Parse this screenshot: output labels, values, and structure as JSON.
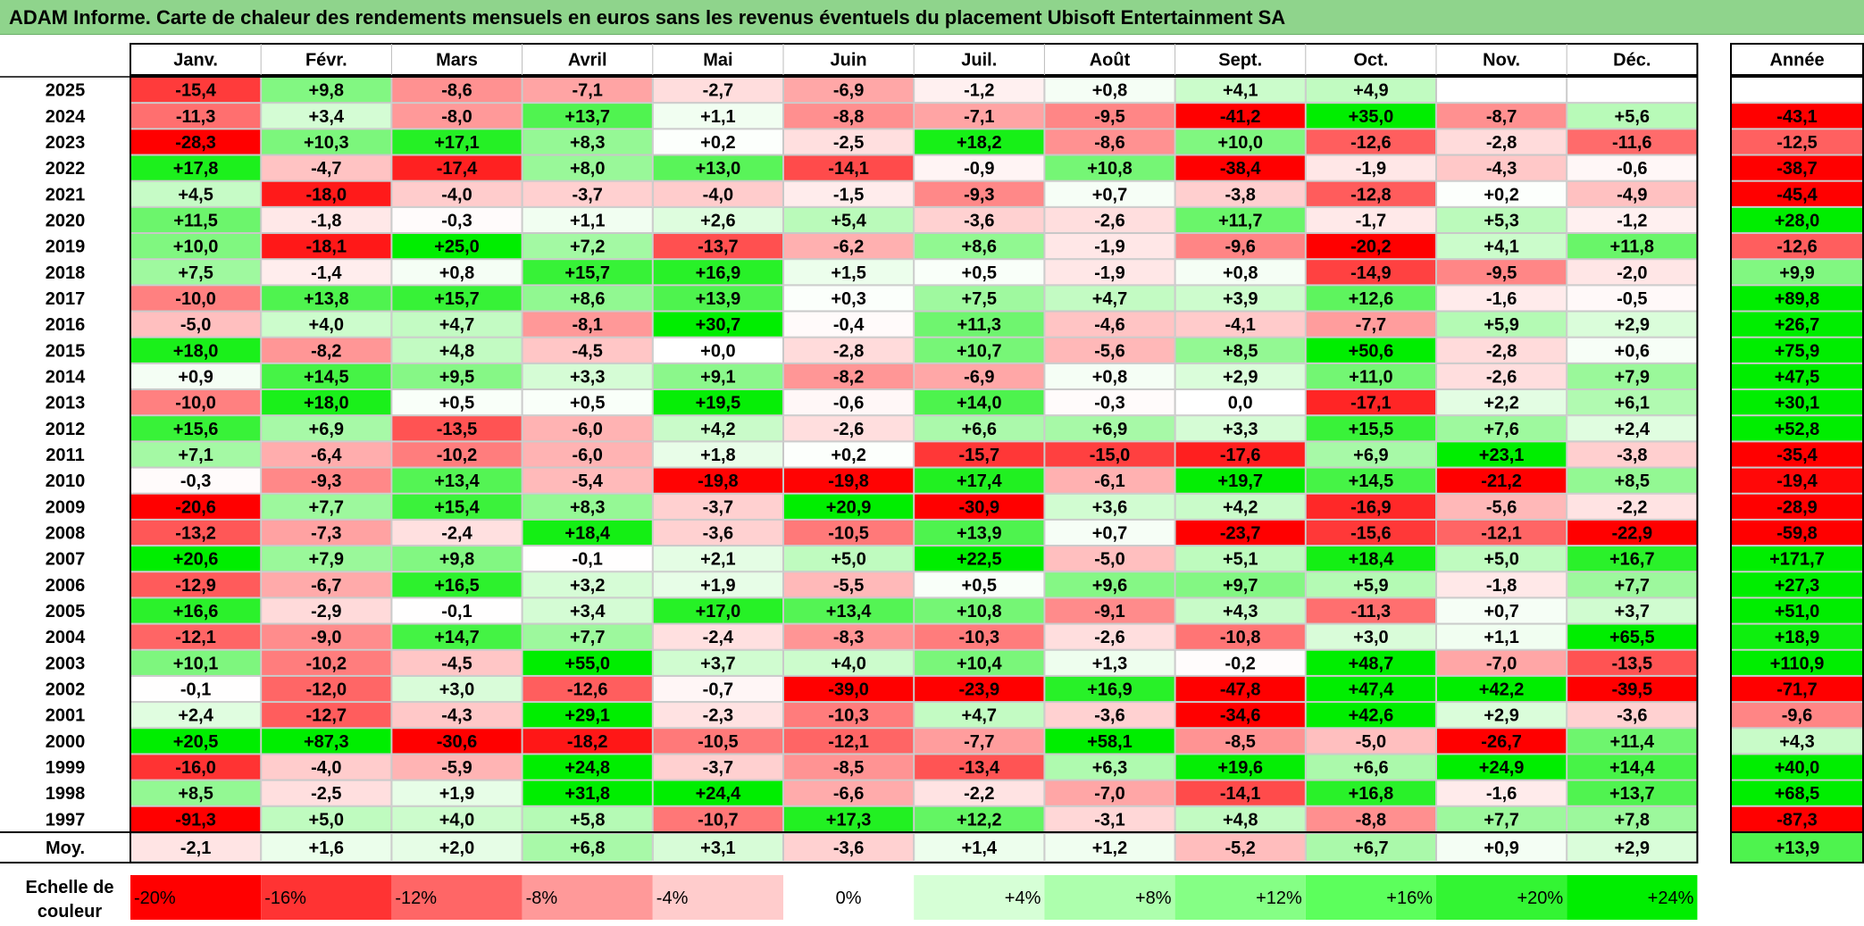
{
  "title": "ADAM Informe. Carte de chaleur des rendements mensuels en euros sans les revenus éventuels du placement Ubisoft Entertainment SA",
  "chart_data": {
    "type": "heatmap",
    "title": "ADAM Informe. Carte de chaleur des rendements mensuels en euros sans les revenus éventuels du placement Ubisoft Entertainment SA",
    "columns": [
      "Janv.",
      "Févr.",
      "Mars",
      "Avril",
      "Mai",
      "Juin",
      "Juil.",
      "Août",
      "Sept.",
      "Oct.",
      "Nov.",
      "Déc."
    ],
    "year_column_label": "Année",
    "rows": [
      {
        "year": "2025",
        "values": [
          "-15,4",
          "+9,8",
          "-8,6",
          "-7,1",
          "-2,7",
          "-6,9",
          "-1,2",
          "+0,8",
          "+4,1",
          "+4,9",
          "",
          ""
        ],
        "annual": ""
      },
      {
        "year": "2024",
        "values": [
          "-11,3",
          "+3,4",
          "-8,0",
          "+13,7",
          "+1,1",
          "-8,8",
          "-7,1",
          "-9,5",
          "-41,2",
          "+35,0",
          "-8,7",
          "+5,6"
        ],
        "annual": "-43,1"
      },
      {
        "year": "2023",
        "values": [
          "-28,3",
          "+10,3",
          "+17,1",
          "+8,3",
          "+0,2",
          "-2,5",
          "+18,2",
          "-8,6",
          "+10,0",
          "-12,6",
          "-2,8",
          "-11,6"
        ],
        "annual": "-12,5"
      },
      {
        "year": "2022",
        "values": [
          "+17,8",
          "-4,7",
          "-17,4",
          "+8,0",
          "+13,0",
          "-14,1",
          "-0,9",
          "+10,8",
          "-38,4",
          "-1,9",
          "-4,3",
          "-0,6"
        ],
        "annual": "-38,7"
      },
      {
        "year": "2021",
        "values": [
          "+4,5",
          "-18,0",
          "-4,0",
          "-3,7",
          "-4,0",
          "-1,5",
          "-9,3",
          "+0,7",
          "-3,8",
          "-12,8",
          "+0,2",
          "-4,9"
        ],
        "annual": "-45,4"
      },
      {
        "year": "2020",
        "values": [
          "+11,5",
          "-1,8",
          "-0,3",
          "+1,1",
          "+2,6",
          "+5,4",
          "-3,6",
          "-2,6",
          "+11,7",
          "-1,7",
          "+5,3",
          "-1,2"
        ],
        "annual": "+28,0"
      },
      {
        "year": "2019",
        "values": [
          "+10,0",
          "-18,1",
          "+25,0",
          "+7,2",
          "-13,7",
          "-6,2",
          "+8,6",
          "-1,9",
          "-9,6",
          "-20,2",
          "+4,1",
          "+11,8"
        ],
        "annual": "-12,6"
      },
      {
        "year": "2018",
        "values": [
          "+7,5",
          "-1,4",
          "+0,8",
          "+15,7",
          "+16,9",
          "+1,5",
          "+0,5",
          "-1,9",
          "+0,8",
          "-14,9",
          "-9,5",
          "-2,0"
        ],
        "annual": "+9,9"
      },
      {
        "year": "2017",
        "values": [
          "-10,0",
          "+13,8",
          "+15,7",
          "+8,6",
          "+13,9",
          "+0,3",
          "+7,5",
          "+4,7",
          "+3,9",
          "+12,6",
          "-1,6",
          "-0,5"
        ],
        "annual": "+89,8"
      },
      {
        "year": "2016",
        "values": [
          "-5,0",
          "+4,0",
          "+4,7",
          "-8,1",
          "+30,7",
          "-0,4",
          "+11,3",
          "-4,6",
          "-4,1",
          "-7,7",
          "+5,9",
          "+2,9"
        ],
        "annual": "+26,7"
      },
      {
        "year": "2015",
        "values": [
          "+18,0",
          "-8,2",
          "+4,8",
          "-4,5",
          "+0,0",
          "-2,8",
          "+10,7",
          "-5,6",
          "+8,5",
          "+50,6",
          "-2,8",
          "+0,6"
        ],
        "annual": "+75,9"
      },
      {
        "year": "2014",
        "values": [
          "+0,9",
          "+14,5",
          "+9,5",
          "+3,3",
          "+9,1",
          "-8,2",
          "-6,9",
          "+0,8",
          "+2,9",
          "+11,0",
          "-2,6",
          "+7,9"
        ],
        "annual": "+47,5"
      },
      {
        "year": "2013",
        "values": [
          "-10,0",
          "+18,0",
          "+0,5",
          "+0,5",
          "+19,5",
          "-0,6",
          "+14,0",
          "-0,3",
          "0,0",
          "-17,1",
          "+2,2",
          "+6,1"
        ],
        "annual": "+30,1"
      },
      {
        "year": "2012",
        "values": [
          "+15,6",
          "+6,9",
          "-13,5",
          "-6,0",
          "+4,2",
          "-2,6",
          "+6,6",
          "+6,9",
          "+3,3",
          "+15,5",
          "+7,6",
          "+2,4"
        ],
        "annual": "+52,8"
      },
      {
        "year": "2011",
        "values": [
          "+7,1",
          "-6,4",
          "-10,2",
          "-6,0",
          "+1,8",
          "+0,2",
          "-15,7",
          "-15,0",
          "-17,6",
          "+6,9",
          "+23,1",
          "-3,8"
        ],
        "annual": "-35,4"
      },
      {
        "year": "2010",
        "values": [
          "-0,3",
          "-9,3",
          "+13,4",
          "-5,4",
          "-19,8",
          "-19,8",
          "+17,4",
          "-6,1",
          "+19,7",
          "+14,5",
          "-21,2",
          "+8,5"
        ],
        "annual": "-19,4"
      },
      {
        "year": "2009",
        "values": [
          "-20,6",
          "+7,7",
          "+15,4",
          "+8,3",
          "-3,7",
          "+20,9",
          "-30,9",
          "+3,6",
          "+4,2",
          "-16,9",
          "-5,6",
          "-2,2"
        ],
        "annual": "-28,9"
      },
      {
        "year": "2008",
        "values": [
          "-13,2",
          "-7,3",
          "-2,4",
          "+18,4",
          "-3,6",
          "-10,5",
          "+13,9",
          "+0,7",
          "-23,7",
          "-15,6",
          "-12,1",
          "-22,9"
        ],
        "annual": "-59,8"
      },
      {
        "year": "2007",
        "values": [
          "+20,6",
          "+7,9",
          "+9,8",
          "-0,1",
          "+2,1",
          "+5,0",
          "+22,5",
          "-5,0",
          "+5,1",
          "+18,4",
          "+5,0",
          "+16,7"
        ],
        "annual": "+171,7"
      },
      {
        "year": "2006",
        "values": [
          "-12,9",
          "-6,7",
          "+16,5",
          "+3,2",
          "+1,9",
          "-5,5",
          "+0,5",
          "+9,6",
          "+9,7",
          "+5,9",
          "-1,8",
          "+7,7"
        ],
        "annual": "+27,3"
      },
      {
        "year": "2005",
        "values": [
          "+16,6",
          "-2,9",
          "-0,1",
          "+3,4",
          "+17,0",
          "+13,4",
          "+10,8",
          "-9,1",
          "+4,3",
          "-11,3",
          "+0,7",
          "+3,7"
        ],
        "annual": "+51,0"
      },
      {
        "year": "2004",
        "values": [
          "-12,1",
          "-9,0",
          "+14,7",
          "+7,7",
          "-2,4",
          "-8,3",
          "-10,3",
          "-2,6",
          "-10,8",
          "+3,0",
          "+1,1",
          "+65,5"
        ],
        "annual": "+18,9"
      },
      {
        "year": "2003",
        "values": [
          "+10,1",
          "-10,2",
          "-4,5",
          "+55,0",
          "+3,7",
          "+4,0",
          "+10,4",
          "+1,3",
          "-0,2",
          "+48,7",
          "-7,0",
          "-13,5"
        ],
        "annual": "+110,9"
      },
      {
        "year": "2002",
        "values": [
          "-0,1",
          "-12,0",
          "+3,0",
          "-12,6",
          "-0,7",
          "-39,0",
          "-23,9",
          "+16,9",
          "-47,8",
          "+47,4",
          "+42,2",
          "-39,5"
        ],
        "annual": "-71,7"
      },
      {
        "year": "2001",
        "values": [
          "+2,4",
          "-12,7",
          "-4,3",
          "+29,1",
          "-2,3",
          "-10,3",
          "+4,7",
          "-3,6",
          "-34,6",
          "+42,6",
          "+2,9",
          "-3,6"
        ],
        "annual": "-9,6"
      },
      {
        "year": "2000",
        "values": [
          "+20,5",
          "+87,3",
          "-30,6",
          "-18,2",
          "-10,5",
          "-12,1",
          "-7,7",
          "+58,1",
          "-8,5",
          "-5,0",
          "-26,7",
          "+11,4"
        ],
        "annual": "+4,3"
      },
      {
        "year": "1999",
        "values": [
          "-16,0",
          "-4,0",
          "-5,9",
          "+24,8",
          "-3,7",
          "-8,5",
          "-13,4",
          "+6,3",
          "+19,6",
          "+6,6",
          "+24,9",
          "+14,4"
        ],
        "annual": "+40,0"
      },
      {
        "year": "1998",
        "values": [
          "+8,5",
          "-2,5",
          "+1,9",
          "+31,8",
          "+24,4",
          "-6,6",
          "-2,2",
          "-7,0",
          "-14,1",
          "+16,8",
          "-1,6",
          "+13,7"
        ],
        "annual": "+68,5"
      },
      {
        "year": "1997",
        "values": [
          "-91,3",
          "+5,0",
          "+4,0",
          "+5,8",
          "-10,7",
          "+17,3",
          "+12,2",
          "-3,1",
          "+4,8",
          "-8,8",
          "+7,7",
          "+7,8"
        ],
        "annual": "-87,3"
      }
    ],
    "average": {
      "label": "Moy.",
      "values": [
        "-2,1",
        "+1,6",
        "+2,0",
        "+6,8",
        "+3,1",
        "-3,6",
        "+1,4",
        "+1,2",
        "-5,2",
        "+6,7",
        "+0,9",
        "+2,9"
      ],
      "annual": "+13,9"
    },
    "scale": {
      "label_line1": "Echelle de",
      "label_line2": "couleur",
      "stops": [
        {
          "label": "-20%",
          "value": -20,
          "color": "#ff0000"
        },
        {
          "label": "-16%",
          "value": -16,
          "color": "#ff3333"
        },
        {
          "label": "-12%",
          "value": -12,
          "color": "#ff6666"
        },
        {
          "label": "-8%",
          "value": -8,
          "color": "#ff9999"
        },
        {
          "label": "-4%",
          "value": -4,
          "color": "#ffcccc"
        },
        {
          "label": "0%",
          "value": 0,
          "color": "#ffffff"
        },
        {
          "label": "+4%",
          "value": 4,
          "color": "#d6ffd6"
        },
        {
          "label": "+8%",
          "value": 8,
          "color": "#adffad"
        },
        {
          "label": "+12%",
          "value": 12,
          "color": "#85ff85"
        },
        {
          "label": "+16%",
          "value": 16,
          "color": "#5cff5c"
        },
        {
          "label": "+20%",
          "value": 20,
          "color": "#33f533"
        },
        {
          "label": "+24%",
          "value": 24,
          "color": "#00ee00"
        }
      ]
    }
  }
}
